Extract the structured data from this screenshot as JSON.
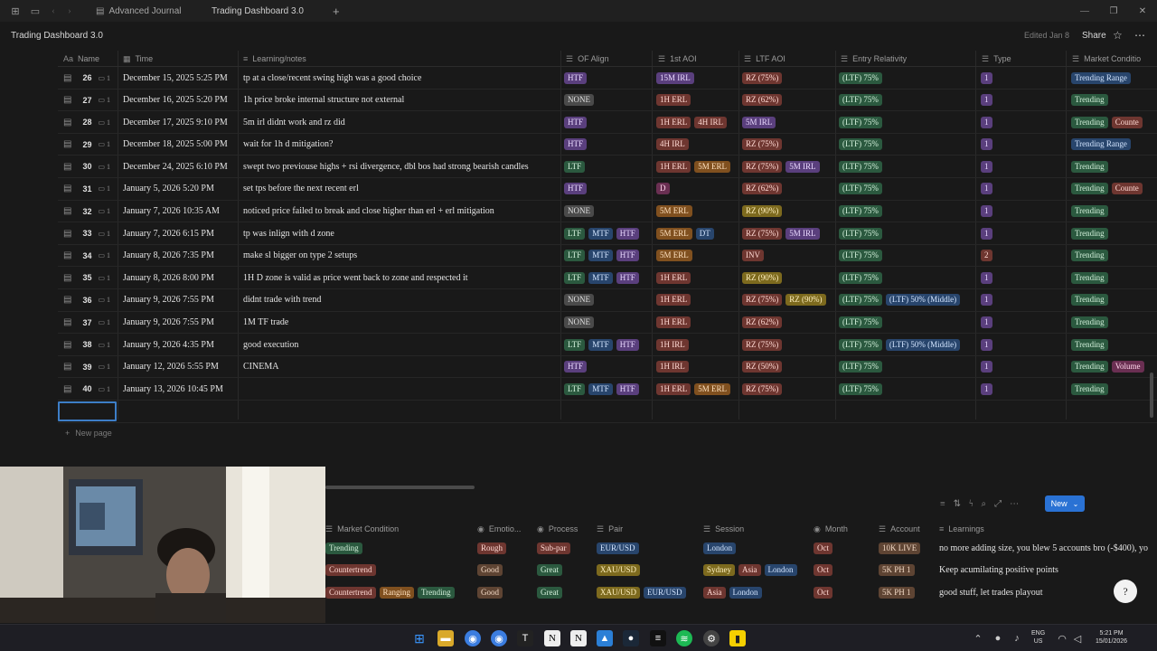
{
  "browser": {
    "tabs": [
      {
        "label": "Advanced Journal"
      },
      {
        "label": "Trading Dashboard 3.0"
      }
    ],
    "new_tab": "+"
  },
  "page": {
    "title": "Trading Dashboard 3.0",
    "edited": "Edited Jan 8",
    "share": "Share"
  },
  "table": {
    "headers": {
      "name": "Name",
      "time": "Time",
      "notes": "Learning/notes",
      "of_align": "OF Align",
      "first_aoi": "1st AOI",
      "ltf_aoi": "LTF AOI",
      "entry": "Entry Relativity",
      "type": "Type",
      "market": "Market Conditio"
    },
    "rows": [
      {
        "num": "26",
        "comments": "1",
        "time": "December 15, 2025 5:25 PM",
        "note": "tp at a close/recent swing high was a good choice",
        "of": [
          [
            "HTF",
            "purple"
          ]
        ],
        "aoi": [
          [
            "15M IRL",
            "purple"
          ]
        ],
        "ltf": [
          [
            "RZ (75%)",
            "red"
          ]
        ],
        "entry": [
          [
            "(LTF) 75%",
            "green"
          ]
        ],
        "type": [
          [
            "1",
            "purple"
          ]
        ],
        "mkt": [
          [
            "Trending Range",
            "blue"
          ]
        ]
      },
      {
        "num": "27",
        "comments": "1",
        "time": "December 16, 2025 5:20 PM",
        "note": "1h price broke internal structure not external",
        "of": [
          [
            "NONE",
            "gray"
          ]
        ],
        "aoi": [
          [
            "1H ERL",
            "red"
          ]
        ],
        "ltf": [
          [
            "RZ (62%)",
            "red"
          ]
        ],
        "entry": [
          [
            "(LTF) 75%",
            "green"
          ]
        ],
        "type": [
          [
            "1",
            "purple"
          ]
        ],
        "mkt": [
          [
            "Trending",
            "green"
          ]
        ]
      },
      {
        "num": "28",
        "comments": "1",
        "time": "December 17, 2025 9:10 PM",
        "note": "5m irl didnt work and rz did",
        "of": [
          [
            "HTF",
            "purple"
          ]
        ],
        "aoi": [
          [
            "1H ERL",
            "red"
          ],
          [
            "4H IRL",
            "red"
          ]
        ],
        "ltf": [
          [
            "5M IRL",
            "purple"
          ]
        ],
        "entry": [
          [
            "(LTF) 75%",
            "green"
          ]
        ],
        "type": [
          [
            "1",
            "purple"
          ]
        ],
        "mkt": [
          [
            "Trending",
            "green"
          ],
          [
            "Counte",
            "red"
          ]
        ]
      },
      {
        "num": "29",
        "comments": "1",
        "time": "December 18, 2025 5:00 PM",
        "note": "wait for 1h d mitigation?",
        "of": [
          [
            "HTF",
            "purple"
          ]
        ],
        "aoi": [
          [
            "4H IRL",
            "red"
          ]
        ],
        "ltf": [
          [
            "RZ (75%)",
            "red"
          ]
        ],
        "entry": [
          [
            "(LTF) 75%",
            "green"
          ]
        ],
        "type": [
          [
            "1",
            "purple"
          ]
        ],
        "mkt": [
          [
            "Trending Range",
            "blue"
          ]
        ]
      },
      {
        "num": "30",
        "comments": "1",
        "time": "December 24, 2025 6:10 PM",
        "note": "swept two previouse highs + rsi divergence, dbl bos had strong bearish candles",
        "of": [
          [
            "LTF",
            "green"
          ]
        ],
        "aoi": [
          [
            "1H ERL",
            "red"
          ],
          [
            "5M ERL",
            "orange"
          ]
        ],
        "ltf": [
          [
            "RZ (75%)",
            "red"
          ],
          [
            "5M IRL",
            "purple"
          ]
        ],
        "entry": [
          [
            "(LTF) 75%",
            "green"
          ]
        ],
        "type": [
          [
            "1",
            "purple"
          ]
        ],
        "mkt": [
          [
            "Trending",
            "green"
          ]
        ]
      },
      {
        "num": "31",
        "comments": "1",
        "time": "January 5, 2026 5:20 PM",
        "note": "set tps before the next recent erl",
        "of": [
          [
            "HTF",
            "purple"
          ]
        ],
        "aoi": [
          [
            "D",
            "pink"
          ]
        ],
        "ltf": [
          [
            "RZ (62%)",
            "red"
          ]
        ],
        "entry": [
          [
            "(LTF) 75%",
            "green"
          ]
        ],
        "type": [
          [
            "1",
            "purple"
          ]
        ],
        "mkt": [
          [
            "Trending",
            "green"
          ],
          [
            "Counte",
            "red"
          ]
        ]
      },
      {
        "num": "32",
        "comments": "1",
        "time": "January 7, 2026 10:35 AM",
        "note": "noticed price failed to break and close higher than erl + erl mitigation",
        "of": [
          [
            "NONE",
            "gray"
          ]
        ],
        "aoi": [
          [
            "5M ERL",
            "orange"
          ]
        ],
        "ltf": [
          [
            "RZ (90%)",
            "yellow"
          ]
        ],
        "entry": [
          [
            "(LTF) 75%",
            "green"
          ]
        ],
        "type": [
          [
            "1",
            "purple"
          ]
        ],
        "mkt": [
          [
            "Trending",
            "green"
          ]
        ]
      },
      {
        "num": "33",
        "comments": "1",
        "time": "January 7, 2026 6:15 PM",
        "note": "tp was inlign with d zone",
        "of": [
          [
            "LTF",
            "green"
          ],
          [
            "MTF",
            "blue"
          ],
          [
            "HTF",
            "purple"
          ]
        ],
        "aoi": [
          [
            "5M ERL",
            "orange"
          ],
          [
            "DT",
            "blue"
          ]
        ],
        "ltf": [
          [
            "RZ (75%)",
            "red"
          ],
          [
            "5M IRL",
            "purple"
          ]
        ],
        "entry": [
          [
            "(LTF) 75%",
            "green"
          ]
        ],
        "type": [
          [
            "1",
            "purple"
          ]
        ],
        "mkt": [
          [
            "Trending",
            "green"
          ]
        ]
      },
      {
        "num": "34",
        "comments": "1",
        "time": "January 8, 2026 7:35 PM",
        "note": "make sl bigger on type 2 setups",
        "of": [
          [
            "LTF",
            "green"
          ],
          [
            "MTF",
            "blue"
          ],
          [
            "HTF",
            "purple"
          ]
        ],
        "aoi": [
          [
            "5M ERL",
            "orange"
          ]
        ],
        "ltf": [
          [
            "INV",
            "red"
          ]
        ],
        "entry": [
          [
            "(LTF) 75%",
            "green"
          ]
        ],
        "type": [
          [
            "2",
            "red"
          ]
        ],
        "mkt": [
          [
            "Trending",
            "green"
          ]
        ]
      },
      {
        "num": "35",
        "comments": "1",
        "time": "January 8, 2026 8:00 PM",
        "note": "1H D zone is valid as price went back to zone and respected it",
        "of": [
          [
            "LTF",
            "green"
          ],
          [
            "MTF",
            "blue"
          ],
          [
            "HTF",
            "purple"
          ]
        ],
        "aoi": [
          [
            "1H ERL",
            "red"
          ]
        ],
        "ltf": [
          [
            "RZ (90%)",
            "yellow"
          ]
        ],
        "entry": [
          [
            "(LTF) 75%",
            "green"
          ]
        ],
        "type": [
          [
            "1",
            "purple"
          ]
        ],
        "mkt": [
          [
            "Trending",
            "green"
          ]
        ]
      },
      {
        "num": "36",
        "comments": "1",
        "time": "January 9, 2026 7:55 PM",
        "note": "didnt trade with trend",
        "of": [
          [
            "NONE",
            "gray"
          ]
        ],
        "aoi": [
          [
            "1H ERL",
            "red"
          ]
        ],
        "ltf": [
          [
            "RZ (75%)",
            "red"
          ],
          [
            "RZ (90%)",
            "yellow"
          ]
        ],
        "entry": [
          [
            "(LTF) 75%",
            "green"
          ],
          [
            "(LTF) 50% (Middle)",
            "blue"
          ]
        ],
        "type": [
          [
            "1",
            "purple"
          ]
        ],
        "mkt": [
          [
            "Trending",
            "green"
          ]
        ]
      },
      {
        "num": "37",
        "comments": "1",
        "time": "January 9, 2026 7:55 PM",
        "note": "1M TF trade",
        "of": [
          [
            "NONE",
            "gray"
          ]
        ],
        "aoi": [
          [
            "1H ERL",
            "red"
          ]
        ],
        "ltf": [
          [
            "RZ (62%)",
            "red"
          ]
        ],
        "entry": [
          [
            "(LTF) 75%",
            "green"
          ]
        ],
        "type": [
          [
            "1",
            "purple"
          ]
        ],
        "mkt": [
          [
            "Trending",
            "green"
          ]
        ]
      },
      {
        "num": "38",
        "comments": "1",
        "time": "January 9, 2026 4:35 PM",
        "note": "good execution",
        "of": [
          [
            "LTF",
            "green"
          ],
          [
            "MTF",
            "blue"
          ],
          [
            "HTF",
            "purple"
          ]
        ],
        "aoi": [
          [
            "1H IRL",
            "red"
          ]
        ],
        "ltf": [
          [
            "RZ (75%)",
            "red"
          ]
        ],
        "entry": [
          [
            "(LTF) 75%",
            "green"
          ],
          [
            "(LTF) 50% (Middle)",
            "blue"
          ]
        ],
        "type": [
          [
            "1",
            "purple"
          ]
        ],
        "mkt": [
          [
            "Trending",
            "green"
          ]
        ]
      },
      {
        "num": "39",
        "comments": "1",
        "time": "January 12, 2026 5:55 PM",
        "note": "CINEMA",
        "of": [
          [
            "HTF",
            "purple"
          ]
        ],
        "aoi": [
          [
            "1H IRL",
            "red"
          ]
        ],
        "ltf": [
          [
            "RZ (50%)",
            "red"
          ]
        ],
        "entry": [
          [
            "(LTF) 75%",
            "green"
          ]
        ],
        "type": [
          [
            "1",
            "purple"
          ]
        ],
        "mkt": [
          [
            "Trending",
            "green"
          ],
          [
            "Volume",
            "pink"
          ]
        ]
      },
      {
        "num": "40",
        "comments": "1",
        "time": "January 13, 2026 10:45 PM",
        "note": "",
        "of": [
          [
            "LTF",
            "green"
          ],
          [
            "MTF",
            "blue"
          ],
          [
            "HTF",
            "purple"
          ]
        ],
        "aoi": [
          [
            "1H ERL",
            "red"
          ],
          [
            "5M ERL",
            "orange"
          ]
        ],
        "ltf": [
          [
            "RZ (75%)",
            "red"
          ]
        ],
        "entry": [
          [
            "(LTF) 75%",
            "green"
          ]
        ],
        "type": [
          [
            "1",
            "purple"
          ]
        ],
        "mkt": [
          [
            "Trending",
            "green"
          ]
        ]
      }
    ],
    "new_page": "New page"
  },
  "second_db": {
    "new_button": "New",
    "headers": {
      "market": "Market Condition",
      "emotion": "Emotio...",
      "process": "Process",
      "pair": "Pair",
      "session": "Session",
      "month": "Month",
      "account": "Account",
      "learnings": "Learnings"
    },
    "rows": [
      {
        "mkt": [
          [
            "Trending",
            "green"
          ]
        ],
        "emo": [
          [
            "Rough",
            "red"
          ]
        ],
        "proc": [
          [
            "Sub-par",
            "red"
          ]
        ],
        "pair": [
          [
            "EUR/USD",
            "blue"
          ]
        ],
        "sess": [
          [
            "London",
            "blue"
          ]
        ],
        "month": [
          [
            "Oct",
            "red"
          ]
        ],
        "acc": [
          [
            "10K LIVE",
            "brown"
          ]
        ],
        "learn": "no more adding size, you blew 5 accounts bro (-$400), yo"
      },
      {
        "mkt": [
          [
            "Countertrend",
            "red"
          ]
        ],
        "emo": [
          [
            "Good",
            "brown"
          ]
        ],
        "proc": [
          [
            "Great",
            "green"
          ]
        ],
        "pair": [
          [
            "XAU/USD",
            "yellow"
          ]
        ],
        "sess": [
          [
            "Sydney",
            "yellow"
          ],
          [
            "Asia",
            "red"
          ],
          [
            "London",
            "blue"
          ]
        ],
        "month": [
          [
            "Oct",
            "red"
          ]
        ],
        "acc": [
          [
            "5K PH 1",
            "brown"
          ]
        ],
        "learn": "Keep acumilating positive points"
      },
      {
        "mkt": [
          [
            "Countertrend",
            "red"
          ],
          [
            "Ranging",
            "orange"
          ],
          [
            "Trending",
            "green"
          ]
        ],
        "emo": [
          [
            "Good",
            "brown"
          ]
        ],
        "proc": [
          [
            "Great",
            "green"
          ]
        ],
        "pair": [
          [
            "XAU/USD",
            "yellow"
          ],
          [
            "EUR/USD",
            "blue"
          ]
        ],
        "sess": [
          [
            "Asia",
            "red"
          ],
          [
            "London",
            "blue"
          ]
        ],
        "month": [
          [
            "Oct",
            "red"
          ]
        ],
        "acc": [
          [
            "5K PH 1",
            "brown"
          ]
        ],
        "learn": "good stuff, let trades playout"
      }
    ]
  },
  "taskbar": {
    "lang": "ENG",
    "region": "US",
    "time": "5:21 PM",
    "date": "15/01/2026"
  },
  "colors": {
    "accent": "#2a72d4",
    "background": "#191919"
  }
}
